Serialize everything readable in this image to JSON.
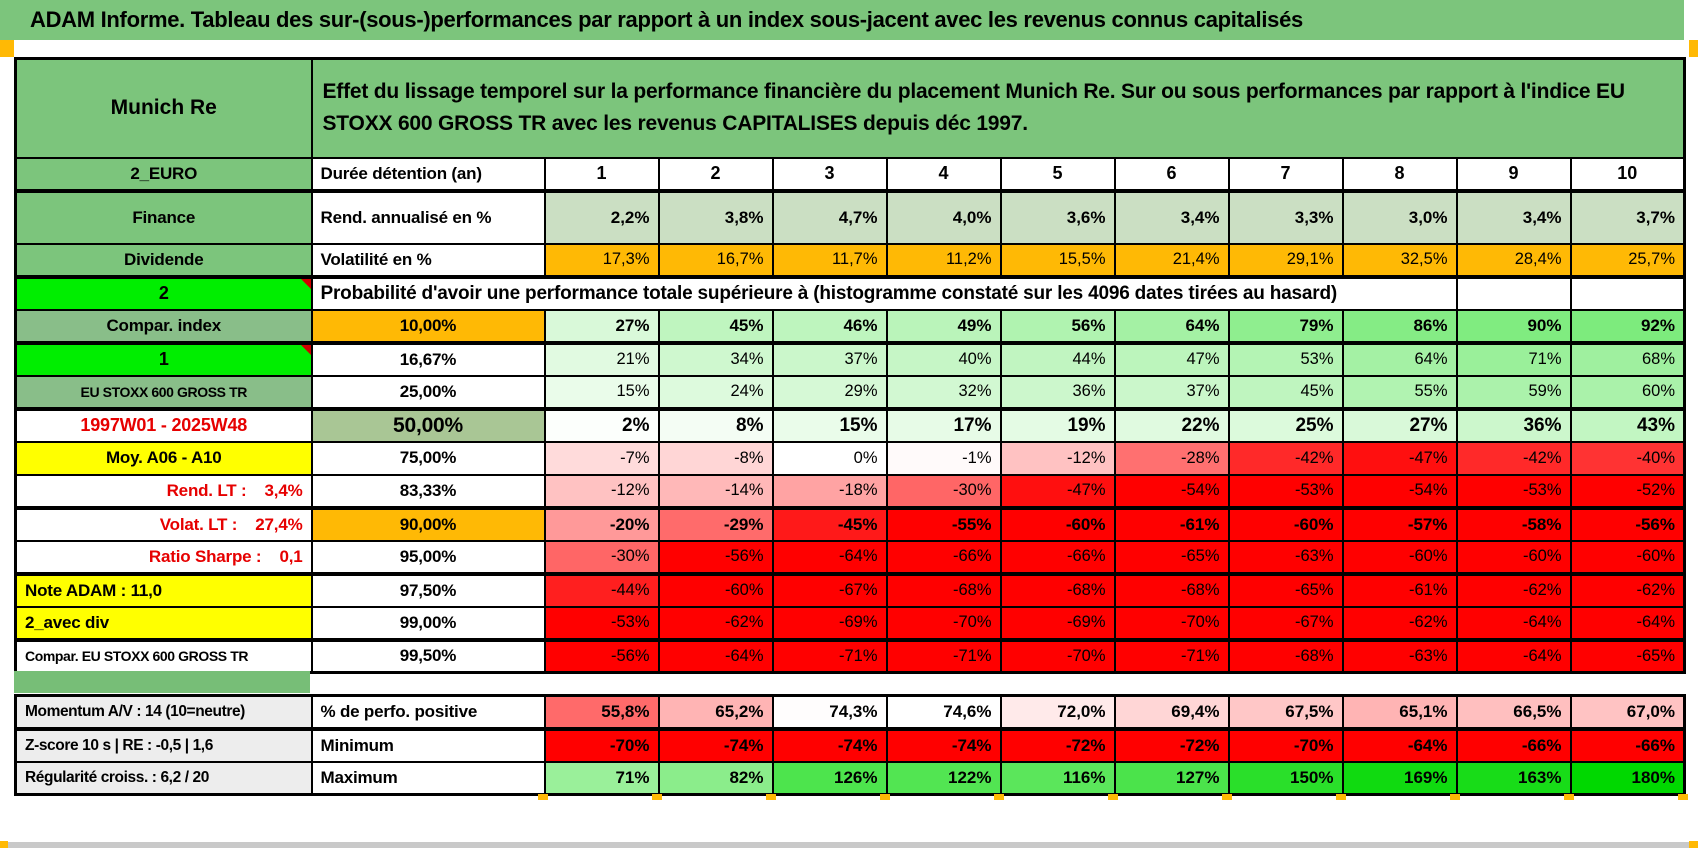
{
  "page": {
    "title": "ADAM Informe. Tableau des sur-(sous-)performances par rapport à un index sous-jacent avec les revenus connus capitalisés"
  },
  "header": {
    "entity": "Munich Re",
    "description": "Effet du lissage temporel sur la performance financière du placement Munich Re. Sur ou sous performances par rapport à l'indice EU STOXX 600 GROSS TR avec les revenus CAPITALISES depuis déc 1997."
  },
  "colors": {
    "title_green": "#7CC57C",
    "muted_green": "#89BE89",
    "bright_green": "#00EE00",
    "separator_green": "#77BE77",
    "orange": "#FFB905",
    "yellow": "#FFFF00",
    "sage": "#CBDFC3",
    "green50": "#A9C695",
    "red_text": "#E60000",
    "gray_label": "#EDEDED",
    "strong_red": "#FF0000",
    "strong_green": "#00D800"
  },
  "grid": {
    "col_headers": [
      "1",
      "2",
      "3",
      "4",
      "5",
      "6",
      "7",
      "8",
      "9",
      "10"
    ],
    "rows": [
      {
        "section": "main",
        "kind": "colheads",
        "label": "2_EURO",
        "label_class": "lbl-green",
        "cell2": "Durée détention (an)",
        "cell2_class": "c2-left",
        "thick_bottom": true
      },
      {
        "section": "main",
        "kind": "data",
        "label": "Finance",
        "label_class": "lbl-green",
        "cell2": "Rend. annualisé en %",
        "cell2_class": "c2-left",
        "cellbg": "sage",
        "fmt": "pct1",
        "bold": true,
        "tall": true,
        "values": [
          2.2,
          3.8,
          4.7,
          4.0,
          3.6,
          3.4,
          3.3,
          3.0,
          3.4,
          3.7
        ]
      },
      {
        "section": "main",
        "kind": "data",
        "label": "Dividende",
        "label_class": "lbl-green",
        "cell2": "Volatilité en %",
        "cell2_class": "c2-left",
        "cellbg": "orange",
        "fmt": "pct1",
        "thick_bottom": true,
        "values": [
          17.3,
          16.7,
          11.7,
          11.2,
          15.5,
          21.4,
          29.1,
          32.5,
          28.4,
          25.7
        ]
      },
      {
        "section": "main",
        "kind": "span",
        "label": "2",
        "label_class": "lbl-bright",
        "note": true,
        "span_text": "Probabilité d'avoir une performance totale supérieure à (histogramme constaté sur les 4096 dates tirées au hasard)"
      },
      {
        "section": "main",
        "kind": "data",
        "label": "Compar. index",
        "label_class": "lbl-green2",
        "cell2": "10,00%",
        "cell2_class": "c2-center c2-orange",
        "fmt": "pct0",
        "bold": true,
        "thick_bottom": true,
        "values": [
          27,
          45,
          46,
          49,
          56,
          64,
          79,
          86,
          90,
          92
        ]
      },
      {
        "section": "main",
        "kind": "data",
        "label": "1",
        "label_class": "lbl-bright",
        "note": true,
        "cell2": "16,67%",
        "cell2_class": "c2-center",
        "fmt": "pct0",
        "values": [
          21,
          34,
          37,
          40,
          44,
          47,
          53,
          64,
          71,
          68
        ]
      },
      {
        "section": "main",
        "kind": "data",
        "label": "EU STOXX 600 GROSS TR",
        "label_class": "lbl-green2 lbl-small",
        "cell2": "25,00%",
        "cell2_class": "c2-center",
        "fmt": "pct0",
        "thick_bottom": true,
        "values": [
          15,
          24,
          29,
          32,
          36,
          37,
          45,
          55,
          59,
          60
        ]
      },
      {
        "section": "main",
        "kind": "data",
        "label": "1997W01 - 2025W48",
        "label_class": "lbl-date",
        "cell2": "50,00%",
        "cell2_class": "c2-center c2-green50",
        "fmt": "pct0",
        "bold": true,
        "big": true,
        "values": [
          2,
          8,
          15,
          17,
          19,
          22,
          25,
          27,
          36,
          43
        ]
      },
      {
        "section": "main",
        "kind": "data",
        "label": "Moy. A06 - A10",
        "label_class": "lbl-yellow",
        "cell2": "75,00%",
        "cell2_class": "c2-center",
        "fmt": "pct0",
        "values": [
          -7,
          -8,
          0,
          -1,
          -12,
          -28,
          -42,
          -47,
          -42,
          -40
        ]
      },
      {
        "section": "main",
        "kind": "data",
        "label": "Rend. LT :    3,4%",
        "label_class": "lbl-red-right",
        "cell2": "83,33%",
        "cell2_class": "c2-center",
        "fmt": "pct0",
        "thick_bottom": true,
        "values": [
          -12,
          -14,
          -18,
          -30,
          -47,
          -54,
          -53,
          -54,
          -53,
          -52
        ]
      },
      {
        "section": "main",
        "kind": "data",
        "label": "Volat. LT :    27,4%",
        "label_class": "lbl-red-right",
        "cell2": "90,00%",
        "cell2_class": "c2-center c2-orange",
        "fmt": "pct0",
        "bold": true,
        "values": [
          -20,
          -29,
          -45,
          -55,
          -60,
          -61,
          -60,
          -57,
          -58,
          -56
        ]
      },
      {
        "section": "main",
        "kind": "data",
        "label": "Ratio Sharpe :    0,1",
        "label_class": "lbl-red-right",
        "cell2": "95,00%",
        "cell2_class": "c2-center",
        "fmt": "pct0",
        "thick_bottom": true,
        "values": [
          -30,
          -56,
          -64,
          -66,
          -66,
          -65,
          -63,
          -60,
          -60,
          -60
        ]
      },
      {
        "section": "main",
        "kind": "data",
        "label": "Note ADAM : 11,0",
        "label_class": "lbl-yellow lbl-left",
        "cell2": "97,50%",
        "cell2_class": "c2-center",
        "fmt": "pct0",
        "values": [
          -44,
          -60,
          -67,
          -68,
          -68,
          -68,
          -65,
          -61,
          -62,
          -62
        ]
      },
      {
        "section": "main",
        "kind": "data",
        "label": "2_avec div",
        "label_class": "lbl-yellow lbl-left",
        "cell2": "99,00%",
        "cell2_class": "c2-center",
        "fmt": "pct0",
        "thick_bottom": true,
        "values": [
          -53,
          -62,
          -69,
          -70,
          -69,
          -70,
          -67,
          -62,
          -64,
          -64
        ]
      },
      {
        "section": "main",
        "kind": "data",
        "label": "Compar. EU STOXX 600 GROSS TR",
        "label_class": "lbl-white-left lbl-small",
        "cell2": "99,50%",
        "cell2_class": "c2-center",
        "fmt": "pct0",
        "values": [
          -56,
          -64,
          -71,
          -71,
          -70,
          -71,
          -68,
          -63,
          -64,
          -65
        ]
      },
      {
        "section": "bottom",
        "kind": "data",
        "label": "Momentum A/V : 14 (10=neutre)",
        "label_class": "lbl-gray",
        "cell2": "% de perfo. positive",
        "cell2_class": "c2-left",
        "fmt": "pct1",
        "scale": "perfo",
        "bold": true,
        "thick_bottom": true,
        "values": [
          55.8,
          65.2,
          74.3,
          74.6,
          72.0,
          69.4,
          67.5,
          65.1,
          66.5,
          67.0
        ]
      },
      {
        "section": "bottom",
        "kind": "data",
        "label": "Z-score 10 s | RE : -0,5 | 1,6",
        "label_class": "lbl-gray",
        "cell2": "Minimum",
        "cell2_class": "c2-left",
        "fmt": "pct0",
        "bold": true,
        "values": [
          -70,
          -74,
          -74,
          -74,
          -72,
          -72,
          -70,
          -64,
          -66,
          -66
        ]
      },
      {
        "section": "bottom",
        "kind": "data",
        "label": "Régularité croiss. : 6,2 / 20",
        "label_class": "lbl-gray",
        "cell2": "Maximum",
        "cell2_class": "c2-left",
        "fmt": "pct0",
        "bold": true,
        "values": [
          71,
          82,
          126,
          122,
          116,
          127,
          150,
          169,
          163,
          180
        ]
      }
    ]
  }
}
